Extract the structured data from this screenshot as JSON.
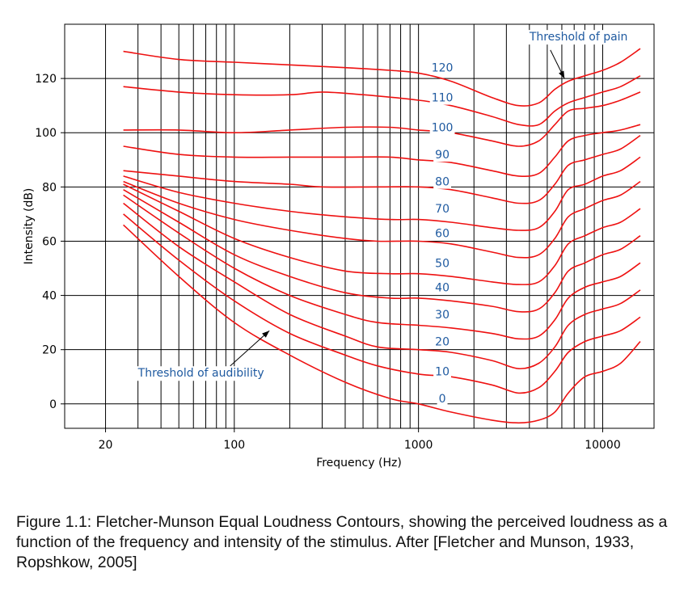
{
  "caption": "Figure 1.1: Fletcher-Munson Equal Loudness Contours, showing the perceived loudness as a function of the frequency and intensity of the stimulus. After [Fletcher and Munson, 1933, Ropshkow, 2005]",
  "colors": {
    "curve": "#ee1111",
    "label": "#1f5aa0",
    "grid": "#000000"
  },
  "chart_data": {
    "type": "line",
    "x_scale": "log",
    "xlabel": "Frequency (Hz)",
    "ylabel": "Intensity (dB)",
    "xlim": [
      12,
      19000
    ],
    "ylim": [
      -9,
      140
    ],
    "x_ticks": [
      {
        "value": 20,
        "label": "20"
      },
      {
        "value": 100,
        "label": "100"
      },
      {
        "value": 1000,
        "label": "1000"
      },
      {
        "value": 10000,
        "label": "10000"
      }
    ],
    "y_ticks": [
      {
        "value": 0,
        "label": "0"
      },
      {
        "value": 20,
        "label": "20"
      },
      {
        "value": 40,
        "label": "40"
      },
      {
        "value": 60,
        "label": "60"
      },
      {
        "value": 80,
        "label": "80"
      },
      {
        "value": 100,
        "label": "100"
      },
      {
        "value": 120,
        "label": "120"
      }
    ],
    "grid": true,
    "series": [
      {
        "name": "0",
        "label_at": [
          1100,
          2
        ],
        "points": [
          [
            25,
            66
          ],
          [
            50,
            47
          ],
          [
            100,
            30
          ],
          [
            200,
            18
          ],
          [
            400,
            8
          ],
          [
            700,
            2
          ],
          [
            1000,
            0
          ],
          [
            1500,
            -3
          ],
          [
            2500,
            -6
          ],
          [
            3500,
            -7
          ],
          [
            4500,
            -6
          ],
          [
            5500,
            -3
          ],
          [
            6500,
            4
          ],
          [
            8000,
            10
          ],
          [
            10000,
            12
          ],
          [
            12500,
            15
          ],
          [
            16000,
            23
          ]
        ]
      },
      {
        "name": "10",
        "label_at": [
          1100,
          12
        ],
        "points": [
          [
            25,
            70
          ],
          [
            50,
            53
          ],
          [
            100,
            38
          ],
          [
            200,
            26
          ],
          [
            400,
            18
          ],
          [
            600,
            14
          ],
          [
            1000,
            11
          ],
          [
            1500,
            10
          ],
          [
            2500,
            7
          ],
          [
            3500,
            4
          ],
          [
            4500,
            6
          ],
          [
            5500,
            12
          ],
          [
            6500,
            19
          ],
          [
            8000,
            23
          ],
          [
            10000,
            25
          ],
          [
            12500,
            27
          ],
          [
            16000,
            32
          ]
        ]
      },
      {
        "name": "20",
        "label_at": [
          1100,
          23
        ],
        "points": [
          [
            25,
            74
          ],
          [
            50,
            58
          ],
          [
            100,
            45
          ],
          [
            200,
            33
          ],
          [
            400,
            25
          ],
          [
            600,
            21
          ],
          [
            1000,
            20
          ],
          [
            1500,
            19
          ],
          [
            2500,
            16
          ],
          [
            3500,
            13
          ],
          [
            4500,
            15
          ],
          [
            5500,
            21
          ],
          [
            6500,
            29
          ],
          [
            8000,
            33
          ],
          [
            10000,
            35
          ],
          [
            12500,
            37
          ],
          [
            16000,
            42
          ]
        ]
      },
      {
        "name": "30",
        "label_at": [
          1100,
          33
        ],
        "points": [
          [
            25,
            77
          ],
          [
            50,
            63
          ],
          [
            100,
            50
          ],
          [
            200,
            40
          ],
          [
            400,
            33
          ],
          [
            600,
            30
          ],
          [
            1000,
            29
          ],
          [
            1500,
            28
          ],
          [
            2500,
            26
          ],
          [
            3500,
            24
          ],
          [
            4500,
            25
          ],
          [
            5500,
            31
          ],
          [
            6500,
            39
          ],
          [
            8000,
            43
          ],
          [
            10000,
            45
          ],
          [
            12500,
            47
          ],
          [
            16000,
            52
          ]
        ]
      },
      {
        "name": "40",
        "label_at": [
          1100,
          43
        ],
        "points": [
          [
            25,
            79
          ],
          [
            50,
            67
          ],
          [
            100,
            55
          ],
          [
            200,
            47
          ],
          [
            400,
            41
          ],
          [
            700,
            39
          ],
          [
            1000,
            39
          ],
          [
            1500,
            38
          ],
          [
            2500,
            36
          ],
          [
            3500,
            34
          ],
          [
            4500,
            35
          ],
          [
            5500,
            41
          ],
          [
            6500,
            49
          ],
          [
            8000,
            52
          ],
          [
            10000,
            55
          ],
          [
            12500,
            57
          ],
          [
            16000,
            62
          ]
        ]
      },
      {
        "name": "50",
        "label_at": [
          1100,
          52
        ],
        "points": [
          [
            25,
            81
          ],
          [
            50,
            71
          ],
          [
            100,
            61
          ],
          [
            200,
            54
          ],
          [
            400,
            49
          ],
          [
            700,
            48
          ],
          [
            1000,
            48
          ],
          [
            1500,
            47
          ],
          [
            2500,
            45
          ],
          [
            3500,
            44
          ],
          [
            4500,
            45
          ],
          [
            5500,
            51
          ],
          [
            6500,
            59
          ],
          [
            8000,
            62
          ],
          [
            10000,
            65
          ],
          [
            12500,
            67
          ],
          [
            16000,
            72
          ]
        ]
      },
      {
        "name": "60",
        "label_at": [
          1100,
          63
        ],
        "points": [
          [
            25,
            82
          ],
          [
            50,
            74
          ],
          [
            100,
            68
          ],
          [
            200,
            64
          ],
          [
            400,
            61
          ],
          [
            600,
            60
          ],
          [
            1000,
            60
          ],
          [
            1500,
            59
          ],
          [
            2500,
            56
          ],
          [
            3500,
            54
          ],
          [
            4500,
            55
          ],
          [
            5500,
            61
          ],
          [
            6500,
            69
          ],
          [
            8000,
            72
          ],
          [
            10000,
            75
          ],
          [
            12500,
            77
          ],
          [
            16000,
            82
          ]
        ]
      },
      {
        "name": "70",
        "label_at": [
          1100,
          72
        ],
        "points": [
          [
            25,
            84
          ],
          [
            50,
            78
          ],
          [
            100,
            74
          ],
          [
            200,
            71
          ],
          [
            400,
            69
          ],
          [
            700,
            68
          ],
          [
            1000,
            68
          ],
          [
            1500,
            67
          ],
          [
            2500,
            65
          ],
          [
            3500,
            64
          ],
          [
            4500,
            65
          ],
          [
            5500,
            71
          ],
          [
            6500,
            79
          ],
          [
            8000,
            81
          ],
          [
            10000,
            84
          ],
          [
            12500,
            86
          ],
          [
            16000,
            91
          ]
        ]
      },
      {
        "name": "80",
        "label_at": [
          1100,
          82
        ],
        "points": [
          [
            25,
            86
          ],
          [
            50,
            84
          ],
          [
            100,
            82
          ],
          [
            200,
            81
          ],
          [
            300,
            80
          ],
          [
            600,
            80
          ],
          [
            1000,
            80
          ],
          [
            1500,
            79
          ],
          [
            2500,
            76
          ],
          [
            3500,
            74
          ],
          [
            4500,
            75
          ],
          [
            5500,
            81
          ],
          [
            6500,
            88
          ],
          [
            8000,
            90
          ],
          [
            10000,
            92
          ],
          [
            12500,
            94
          ],
          [
            16000,
            99
          ]
        ]
      },
      {
        "name": "90",
        "label_at": [
          1100,
          92
        ],
        "points": [
          [
            25,
            95
          ],
          [
            50,
            92
          ],
          [
            100,
            91
          ],
          [
            200,
            91
          ],
          [
            400,
            91
          ],
          [
            700,
            91
          ],
          [
            1000,
            90
          ],
          [
            1500,
            89
          ],
          [
            2500,
            86
          ],
          [
            3500,
            84
          ],
          [
            4500,
            85
          ],
          [
            5500,
            91
          ],
          [
            6500,
            97
          ],
          [
            8000,
            99
          ],
          [
            10000,
            100
          ],
          [
            12500,
            101
          ],
          [
            16000,
            103
          ]
        ]
      },
      {
        "name": "100",
        "label_at": [
          1100,
          102
        ],
        "points": [
          [
            25,
            101
          ],
          [
            50,
            101
          ],
          [
            100,
            100
          ],
          [
            200,
            101
          ],
          [
            400,
            102
          ],
          [
            700,
            102
          ],
          [
            1000,
            101
          ],
          [
            1500,
            100
          ],
          [
            2500,
            97
          ],
          [
            3500,
            95
          ],
          [
            4500,
            97
          ],
          [
            5500,
            103
          ],
          [
            6500,
            108
          ],
          [
            8000,
            109
          ],
          [
            10000,
            110
          ],
          [
            12500,
            112
          ],
          [
            16000,
            115
          ]
        ]
      },
      {
        "name": "110",
        "label_at": [
          1100,
          113
        ],
        "points": [
          [
            25,
            117
          ],
          [
            50,
            115
          ],
          [
            100,
            114
          ],
          [
            200,
            114
          ],
          [
            300,
            115
          ],
          [
            500,
            114
          ],
          [
            1000,
            112
          ],
          [
            1500,
            110
          ],
          [
            2500,
            106
          ],
          [
            3500,
            103
          ],
          [
            4500,
            103
          ],
          [
            5500,
            108
          ],
          [
            6500,
            111
          ],
          [
            8000,
            113
          ],
          [
            10000,
            115
          ],
          [
            12500,
            117
          ],
          [
            16000,
            121
          ]
        ]
      },
      {
        "name": "120",
        "label_at": [
          1100,
          124
        ],
        "points": [
          [
            25,
            130
          ],
          [
            50,
            127
          ],
          [
            100,
            126
          ],
          [
            200,
            125
          ],
          [
            400,
            124
          ],
          [
            700,
            123
          ],
          [
            1000,
            122
          ],
          [
            1500,
            119
          ],
          [
            2500,
            113
          ],
          [
            3500,
            110
          ],
          [
            4500,
            111
          ],
          [
            5500,
            116
          ],
          [
            6500,
            119
          ],
          [
            8000,
            121
          ],
          [
            10000,
            123
          ],
          [
            12500,
            126
          ],
          [
            16000,
            131
          ]
        ]
      }
    ],
    "annotations": [
      {
        "text": "Threshold of pain",
        "text_at": [
          4000,
          134
        ],
        "arrow_from": [
          5200,
          130.5
        ],
        "arrow_to": [
          6200,
          120
        ]
      },
      {
        "text": "Threshold of audibility",
        "text_at": [
          30,
          10
        ],
        "arrow_from": [
          95,
          14
        ],
        "arrow_to": [
          155,
          27
        ]
      }
    ]
  }
}
